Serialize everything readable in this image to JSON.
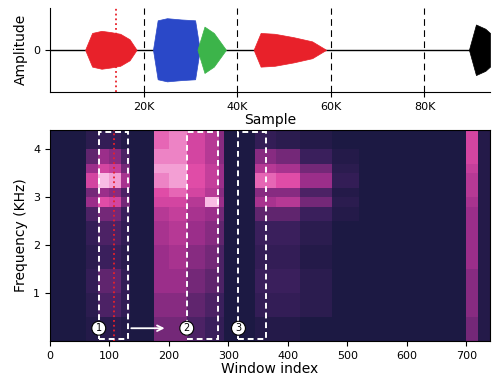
{
  "chart_data": [
    {
      "type": "waveform",
      "x_label": "Sample",
      "y_label": "Amplitude",
      "xlim": [
        0,
        94000
      ],
      "xticks": [
        {
          "value": 20000,
          "label": "20K"
        },
        {
          "value": 40000,
          "label": "40K"
        },
        {
          "value": 60000,
          "label": "60K"
        },
        {
          "value": 80000,
          "label": "80K"
        }
      ],
      "ylim": [
        -1,
        1
      ],
      "yticks": [
        0
      ],
      "grid": true,
      "cursor": 14000,
      "series": [
        {
          "color": "#e8212a",
          "x": [
            7500,
            9000,
            11000,
            13000,
            15000,
            17000,
            18500
          ],
          "values": [
            0,
            0.4,
            0.45,
            0.42,
            0.38,
            0.25,
            0
          ]
        },
        {
          "color": "#2a48c8",
          "x": [
            22000,
            23000,
            25000,
            28000,
            31000,
            32000
          ],
          "values": [
            0,
            0.7,
            0.75,
            0.72,
            0.7,
            0
          ]
        },
        {
          "color": "#3cb44a",
          "x": [
            31500,
            33000,
            35000,
            37600
          ],
          "values": [
            0,
            0.55,
            0.4,
            0
          ]
        },
        {
          "color": "#e8212a",
          "x": [
            43500,
            45000,
            48000,
            52000,
            56000,
            59000
          ],
          "values": [
            0,
            0.4,
            0.38,
            0.3,
            0.2,
            0
          ]
        },
        {
          "color": "#000000",
          "x": [
            89500,
            91000,
            93000,
            94000
          ],
          "values": [
            0,
            0.6,
            0.5,
            0.4
          ]
        }
      ]
    },
    {
      "type": "heatmap",
      "x_label": "Window index",
      "y_label": "Frequency (KHz)",
      "xlim": [
        0,
        740
      ],
      "xticks": [
        0,
        100,
        200,
        300,
        400,
        500,
        600,
        700
      ],
      "ylim": [
        0,
        4.4
      ],
      "yticks": [
        1,
        2,
        3,
        4
      ],
      "cursor": 108,
      "x_edges": [
        0,
        60,
        80,
        100,
        120,
        135,
        175,
        200,
        230,
        260,
        285,
        292,
        300,
        320,
        345,
        380,
        420,
        475,
        520,
        690,
        700,
        720,
        740
      ],
      "y_edges": [
        0,
        0.5,
        1.0,
        1.5,
        2.0,
        2.5,
        2.8,
        3.0,
        3.2,
        3.5,
        3.7,
        4.0,
        4.4
      ],
      "value_range": [
        0,
        1
      ],
      "cells": [
        [
          0.05,
          0.1,
          0.15,
          0.15,
          0.1,
          0.05,
          0.4,
          0.4,
          0.3,
          0.25,
          0.2,
          0.05,
          0.05,
          0.05,
          0.1,
          0.1,
          0.05,
          0.05,
          0.05,
          0.05,
          0.4,
          0.1
        ],
        [
          0.05,
          0.15,
          0.3,
          0.3,
          0.2,
          0.05,
          0.45,
          0.45,
          0.35,
          0.3,
          0.25,
          0.05,
          0.05,
          0.05,
          0.2,
          0.2,
          0.15,
          0.05,
          0.05,
          0.05,
          0.45,
          0.1
        ],
        [
          0.05,
          0.2,
          0.35,
          0.35,
          0.2,
          0.05,
          0.5,
          0.5,
          0.4,
          0.35,
          0.3,
          0.05,
          0.05,
          0.05,
          0.25,
          0.25,
          0.15,
          0.05,
          0.05,
          0.05,
          0.45,
          0.1
        ],
        [
          0.05,
          0.15,
          0.25,
          0.25,
          0.15,
          0.05,
          0.5,
          0.55,
          0.45,
          0.4,
          0.3,
          0.05,
          0.05,
          0.05,
          0.2,
          0.2,
          0.1,
          0.05,
          0.05,
          0.05,
          0.5,
          0.1
        ],
        [
          0.05,
          0.2,
          0.3,
          0.3,
          0.2,
          0.05,
          0.55,
          0.6,
          0.5,
          0.45,
          0.35,
          0.05,
          0.05,
          0.05,
          0.25,
          0.25,
          0.15,
          0.05,
          0.05,
          0.05,
          0.5,
          0.1
        ],
        [
          0.05,
          0.3,
          0.4,
          0.4,
          0.25,
          0.05,
          0.6,
          0.65,
          0.55,
          0.5,
          0.4,
          0.05,
          0.05,
          0.05,
          0.35,
          0.35,
          0.25,
          0.1,
          0.05,
          0.05,
          0.5,
          0.1
        ],
        [
          0.05,
          0.5,
          0.75,
          0.7,
          0.4,
          0.05,
          0.7,
          0.7,
          0.6,
          0.95,
          0.5,
          0.05,
          0.05,
          0.05,
          0.55,
          0.6,
          0.4,
          0.15,
          0.05,
          0.05,
          0.55,
          0.1
        ],
        [
          0.05,
          0.4,
          0.5,
          0.45,
          0.3,
          0.05,
          0.75,
          0.8,
          0.7,
          0.6,
          0.45,
          0.05,
          0.05,
          0.05,
          0.45,
          0.45,
          0.3,
          0.1,
          0.05,
          0.05,
          0.6,
          0.1
        ],
        [
          0.05,
          0.7,
          0.95,
          0.9,
          0.55,
          0.05,
          0.85,
          0.9,
          0.75,
          0.65,
          0.5,
          0.05,
          0.05,
          0.05,
          0.8,
          0.75,
          0.5,
          0.2,
          0.05,
          0.05,
          0.6,
          0.1
        ],
        [
          0.05,
          0.5,
          0.7,
          0.65,
          0.4,
          0.05,
          0.9,
          0.9,
          0.75,
          0.65,
          0.5,
          0.05,
          0.05,
          0.05,
          0.6,
          0.55,
          0.4,
          0.15,
          0.05,
          0.05,
          0.65,
          0.1
        ],
        [
          0.05,
          0.35,
          0.5,
          0.45,
          0.3,
          0.05,
          0.85,
          0.85,
          0.7,
          0.6,
          0.45,
          0.05,
          0.05,
          0.05,
          0.45,
          0.4,
          0.25,
          0.1,
          0.05,
          0.05,
          0.7,
          0.1
        ],
        [
          0.05,
          0.15,
          0.2,
          0.2,
          0.1,
          0.05,
          0.8,
          0.85,
          0.7,
          0.6,
          0.45,
          0.05,
          0.05,
          0.05,
          0.2,
          0.15,
          0.1,
          0.05,
          0.05,
          0.05,
          0.7,
          0.1
        ]
      ],
      "boxes": [
        {
          "label": "1",
          "start": 82,
          "end": 132
        },
        {
          "label": "2",
          "start": 230,
          "end": 282
        },
        {
          "label": "3",
          "start": 317,
          "end": 363
        }
      ]
    }
  ]
}
